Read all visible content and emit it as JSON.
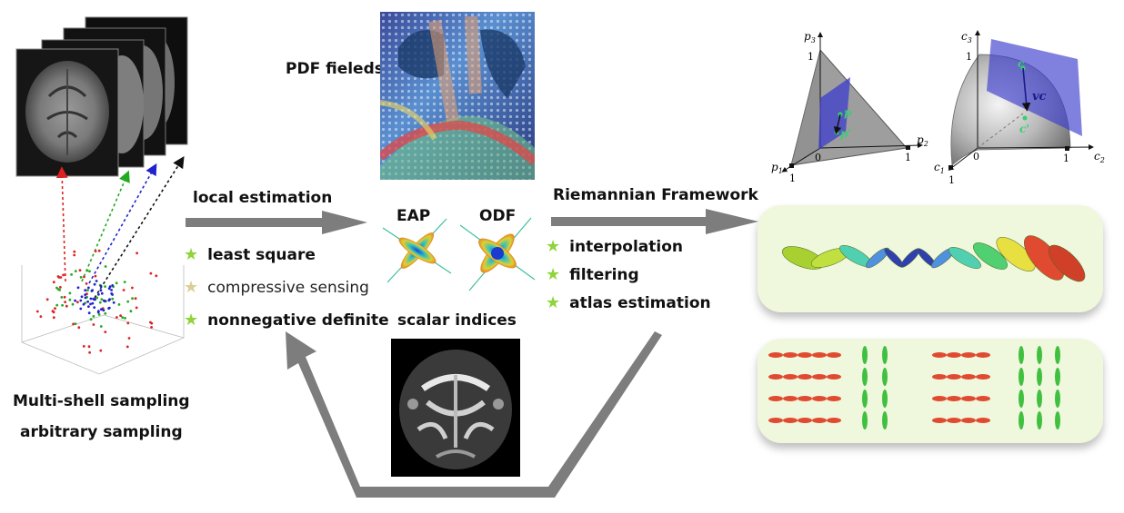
{
  "sampling": {
    "title_line1": "Multi-shell sampling",
    "title_line2": "arbitrary sampling"
  },
  "local": {
    "title": "local estimation",
    "methods": [
      {
        "label": "least square",
        "style": "bold",
        "star": "green-star-icon"
      },
      {
        "label": "compressive sensing",
        "style": "light",
        "star": "pale-star-icon"
      },
      {
        "label": "nonnegative definite",
        "style": "bold",
        "star": "green-star-icon"
      }
    ]
  },
  "center": {
    "pdf_label": "PDF fieleds",
    "eap_label": "EAP",
    "odf_label": "ODF",
    "scalar_label": "scalar indices"
  },
  "riemannian": {
    "title": "Riemannian Framework",
    "items": [
      {
        "label": "interpolation",
        "star": "green-star-icon"
      },
      {
        "label": "filtering",
        "star": "green-star-icon"
      },
      {
        "label": "atlas estimation",
        "star": "green-star-icon"
      }
    ]
  },
  "simplex": {
    "axis_p1": "p",
    "axis_p1_sub": "1",
    "axis_p2": "p",
    "axis_p2_sub": "2",
    "axis_p3": "p",
    "axis_p3_sub": "3",
    "tick_1a": "1",
    "tick_1b": "1",
    "tick_1c": "1",
    "tick_0": "0",
    "point_p": "p",
    "point_p_prime": "p'"
  },
  "sphere": {
    "axis_c1": "c",
    "axis_c1_sub": "1",
    "axis_c2": "c",
    "axis_c2_sub": "2",
    "axis_c3": "c",
    "axis_c3_sub": "3",
    "tick_1a": "1",
    "tick_1b": "1",
    "tick_1c": "1",
    "tick_0": "0",
    "point_c": "c",
    "point_c_prime": "c'",
    "vector_label": "vc"
  },
  "colors": {
    "arrow_gray": "#7d7d7d",
    "panel_bg": "#eff7dc",
    "star_green": "#8fd43a",
    "star_pale": "#d9cf96",
    "plane_blue": "#3c3ccc"
  }
}
